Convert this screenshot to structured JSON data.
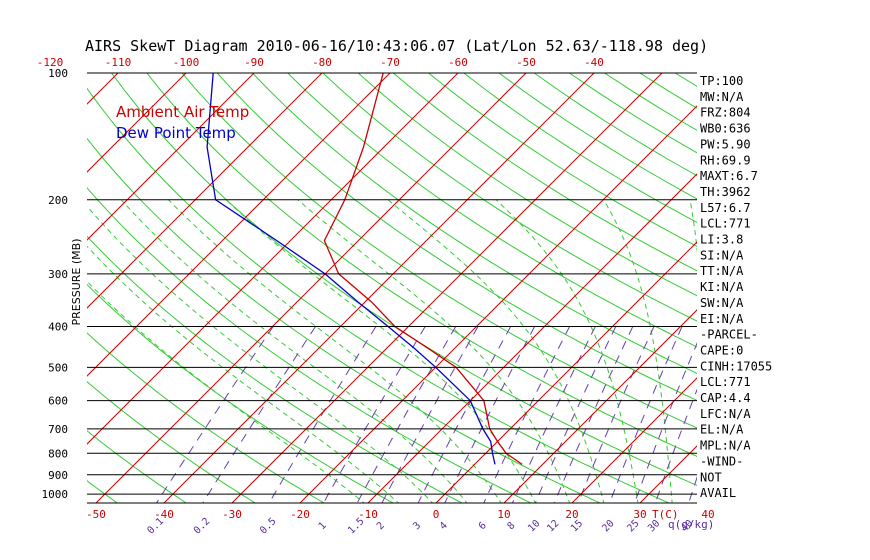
{
  "chart_data": {
    "type": "line",
    "title": "AIRS SkewT Diagram 2010-06-16/10:43:06.07 (Lat/Lon 52.63/-118.98 deg)",
    "ylabel": "PRESSURE (MB)",
    "xlabel_units": "T(C)",
    "mixing_units": "q(g/kg)",
    "pressure_ticks": [
      100,
      200,
      300,
      400,
      500,
      600,
      700,
      800,
      900,
      1000
    ],
    "top_temp_ticks": [
      -120,
      -110,
      -100,
      -90,
      -80,
      -70,
      -60,
      -50,
      -40
    ],
    "bottom_temp_ticks": [
      -50,
      -40,
      -30,
      -20,
      -10,
      0,
      10,
      20,
      30,
      40
    ],
    "mixing_ratio_ticks": [
      "0.1",
      "0.2",
      "0.5",
      "1",
      "1.5",
      "2",
      "3",
      "4",
      "6",
      "8",
      "10",
      "12",
      "15",
      "20",
      "25",
      "30",
      "40"
    ],
    "legend": [
      {
        "label": "Ambient Air Temp",
        "color": "#cc0000"
      },
      {
        "label": "Dew Point Temp",
        "color": "#0000cc"
      }
    ],
    "series": [
      {
        "name": "Ambient Air Temp",
        "color": "#cc0000",
        "points": [
          {
            "p": 850,
            "t": 7
          },
          {
            "p": 800,
            "t": 3
          },
          {
            "p": 750,
            "t": 0
          },
          {
            "p": 700,
            "t": -3
          },
          {
            "p": 600,
            "t": -8
          },
          {
            "p": 500,
            "t": -17
          },
          {
            "p": 450,
            "t": -24
          },
          {
            "p": 400,
            "t": -32
          },
          {
            "p": 350,
            "t": -39
          },
          {
            "p": 300,
            "t": -48
          },
          {
            "p": 250,
            "t": -55
          },
          {
            "p": 200,
            "t": -58
          },
          {
            "p": 150,
            "t": -63
          },
          {
            "p": 100,
            "t": -71
          }
        ]
      },
      {
        "name": "Dew Point Temp",
        "color": "#0000cc",
        "points": [
          {
            "p": 850,
            "t": 3
          },
          {
            "p": 800,
            "t": 1
          },
          {
            "p": 750,
            "t": -1
          },
          {
            "p": 700,
            "t": -4
          },
          {
            "p": 600,
            "t": -10
          },
          {
            "p": 500,
            "t": -20
          },
          {
            "p": 450,
            "t": -26
          },
          {
            "p": 400,
            "t": -33
          },
          {
            "p": 350,
            "t": -41
          },
          {
            "p": 300,
            "t": -50
          },
          {
            "p": 250,
            "t": -62
          },
          {
            "p": 200,
            "t": -77
          },
          {
            "p": 150,
            "t": -86
          },
          {
            "p": 100,
            "t": -96
          }
        ]
      }
    ],
    "indices": [
      "TP:100",
      "MW:N/A",
      "FRZ:804",
      "WB0:636",
      "PW:5.90",
      "RH:69.9",
      "MAXT:6.7",
      "TH:3962",
      "L57:6.7",
      "LCL:771",
      "LI:3.8",
      "SI:N/A",
      "TT:N/A",
      "KI:N/A",
      "SW:N/A",
      "EI:N/A",
      "-PARCEL-",
      "CAPE:0",
      "CINH:17055",
      "LCL:771",
      "CAP:4.4",
      "LFC:N/A",
      "EL:N/A",
      "MPL:N/A",
      "-WIND-",
      "NOT",
      "AVAIL"
    ]
  }
}
